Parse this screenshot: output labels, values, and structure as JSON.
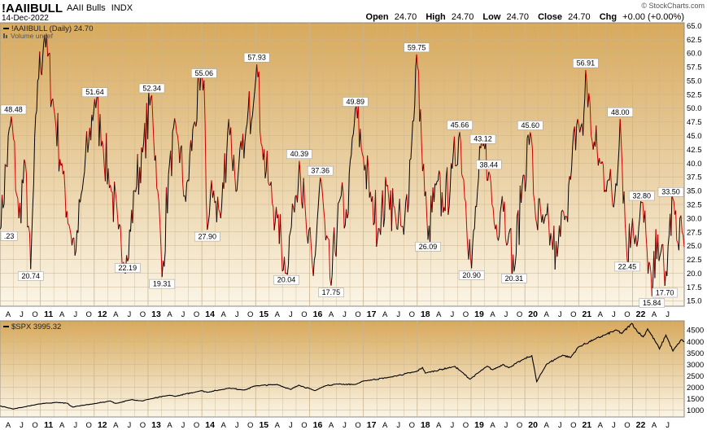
{
  "header": {
    "symbol": "!AAIIBULL",
    "name": "AAII Bulls",
    "exchange": "INDX",
    "date": "14-Dec-2022",
    "open_label": "Open",
    "open": "24.70",
    "high_label": "High",
    "high": "24.70",
    "low_label": "Low",
    "low": "24.70",
    "close_label": "Close",
    "close": "24.70",
    "chg_label": "Chg",
    "chg": "+0.00 (+0.00%)",
    "logo": "© StockCharts.com"
  },
  "colors": {
    "panel_top": "#d7a95c",
    "panel_bottom": "#fbf5e6",
    "up_line": "#000000",
    "down_line": "#cc0000",
    "spx_line": "#000000",
    "grid": "#c9b48f"
  },
  "chart_data": [
    {
      "type": "line",
      "title": "!AAIIBULL (Daily) 24.70",
      "legend_secondary": "Volume undef",
      "ylim": [
        14,
        65.5
      ],
      "yticks": [
        15.0,
        17.5,
        20.0,
        22.5,
        25.0,
        27.5,
        30.0,
        32.5,
        35.0,
        37.5,
        40.0,
        42.5,
        45.0,
        47.5,
        50.0,
        52.5,
        55.0,
        57.5,
        60.0,
        62.5,
        65.0
      ],
      "x_start": 2010.25,
      "x_end": 2022.96,
      "x_axis_labels": [
        {
          "x": 2010.25,
          "label": "A",
          "year": false
        },
        {
          "x": 2010.5,
          "label": "J",
          "year": false
        },
        {
          "x": 2010.75,
          "label": "O",
          "year": false
        },
        {
          "x": 2011.0,
          "label": "11",
          "year": true
        },
        {
          "x": 2011.25,
          "label": "A",
          "year": false
        },
        {
          "x": 2011.5,
          "label": "J",
          "year": false
        },
        {
          "x": 2011.75,
          "label": "O",
          "year": false
        },
        {
          "x": 2012.0,
          "label": "12",
          "year": true
        },
        {
          "x": 2012.25,
          "label": "A",
          "year": false
        },
        {
          "x": 2012.5,
          "label": "J",
          "year": false
        },
        {
          "x": 2012.75,
          "label": "O",
          "year": false
        },
        {
          "x": 2013.0,
          "label": "13",
          "year": true
        },
        {
          "x": 2013.25,
          "label": "A",
          "year": false
        },
        {
          "x": 2013.5,
          "label": "J",
          "year": false
        },
        {
          "x": 2013.75,
          "label": "O",
          "year": false
        },
        {
          "x": 2014.0,
          "label": "14",
          "year": true
        },
        {
          "x": 2014.25,
          "label": "A",
          "year": false
        },
        {
          "x": 2014.5,
          "label": "J",
          "year": false
        },
        {
          "x": 2014.75,
          "label": "O",
          "year": false
        },
        {
          "x": 2015.0,
          "label": "15",
          "year": true
        },
        {
          "x": 2015.25,
          "label": "A",
          "year": false
        },
        {
          "x": 2015.5,
          "label": "J",
          "year": false
        },
        {
          "x": 2015.75,
          "label": "O",
          "year": false
        },
        {
          "x": 2016.0,
          "label": "16",
          "year": true
        },
        {
          "x": 2016.25,
          "label": "A",
          "year": false
        },
        {
          "x": 2016.5,
          "label": "J",
          "year": false
        },
        {
          "x": 2016.75,
          "label": "O",
          "year": false
        },
        {
          "x": 2017.0,
          "label": "17",
          "year": true
        },
        {
          "x": 2017.25,
          "label": "A",
          "year": false
        },
        {
          "x": 2017.5,
          "label": "J",
          "year": false
        },
        {
          "x": 2017.75,
          "label": "O",
          "year": false
        },
        {
          "x": 2018.0,
          "label": "18",
          "year": true
        },
        {
          "x": 2018.25,
          "label": "A",
          "year": false
        },
        {
          "x": 2018.5,
          "label": "J",
          "year": false
        },
        {
          "x": 2018.75,
          "label": "O",
          "year": false
        },
        {
          "x": 2019.0,
          "label": "19",
          "year": true
        },
        {
          "x": 2019.25,
          "label": "A",
          "year": false
        },
        {
          "x": 2019.5,
          "label": "J",
          "year": false
        },
        {
          "x": 2019.75,
          "label": "O",
          "year": false
        },
        {
          "x": 2020.0,
          "label": "20",
          "year": true
        },
        {
          "x": 2020.25,
          "label": "A",
          "year": false
        },
        {
          "x": 2020.5,
          "label": "J",
          "year": false
        },
        {
          "x": 2020.75,
          "label": "O",
          "year": false
        },
        {
          "x": 2021.0,
          "label": "21",
          "year": true
        },
        {
          "x": 2021.25,
          "label": "A",
          "year": false
        },
        {
          "x": 2021.5,
          "label": "J",
          "year": false
        },
        {
          "x": 2021.75,
          "label": "O",
          "year": false
        },
        {
          "x": 2022.0,
          "label": "22",
          "year": true
        },
        {
          "x": 2022.25,
          "label": "A",
          "year": false
        },
        {
          "x": 2022.5,
          "label": "J",
          "year": false
        },
        {
          "x": 2022.75,
          "label": "O",
          "year": false
        }
      ],
      "annotations": [
        {
          "x": 2010.26,
          "y": 28.0,
          "label": ".23",
          "pos": "below"
        },
        {
          "x": 2010.46,
          "y": 48.48,
          "label": "48.48",
          "pos": "above"
        },
        {
          "x": 2010.82,
          "y": 20.74,
          "label": "20.74",
          "pos": "below"
        },
        {
          "x": 2012.01,
          "y": 51.64,
          "label": "51.64",
          "pos": "above"
        },
        {
          "x": 2012.62,
          "y": 22.19,
          "label": "22.19",
          "pos": "below"
        },
        {
          "x": 2013.07,
          "y": 52.34,
          "label": "52.34",
          "pos": "above"
        },
        {
          "x": 2013.26,
          "y": 19.31,
          "label": "19.31",
          "pos": "below"
        },
        {
          "x": 2014.04,
          "y": 55.06,
          "label": "55.06",
          "pos": "above"
        },
        {
          "x": 2014.1,
          "y": 27.9,
          "label": "27.90",
          "pos": "below"
        },
        {
          "x": 2015.02,
          "y": 57.93,
          "label": "57.93",
          "pos": "above"
        },
        {
          "x": 2015.57,
          "y": 20.04,
          "label": "20.04",
          "pos": "below"
        },
        {
          "x": 2015.81,
          "y": 40.39,
          "label": "40.39",
          "pos": "above"
        },
        {
          "x": 2016.2,
          "y": 37.36,
          "label": "37.36",
          "pos": "above"
        },
        {
          "x": 2016.4,
          "y": 17.75,
          "label": "17.75",
          "pos": "below"
        },
        {
          "x": 2016.85,
          "y": 49.89,
          "label": "49.89",
          "pos": "above"
        },
        {
          "x": 2017.99,
          "y": 59.75,
          "label": "59.75",
          "pos": "above"
        },
        {
          "x": 2018.2,
          "y": 26.09,
          "label": "26.09",
          "pos": "below"
        },
        {
          "x": 2018.79,
          "y": 45.66,
          "label": "45.66",
          "pos": "above"
        },
        {
          "x": 2019.01,
          "y": 20.9,
          "label": "20.90",
          "pos": "below"
        },
        {
          "x": 2019.22,
          "y": 43.12,
          "label": "43.12",
          "pos": "above"
        },
        {
          "x": 2019.33,
          "y": 38.44,
          "label": "38.44",
          "pos": "above"
        },
        {
          "x": 2019.8,
          "y": 20.31,
          "label": "20.31",
          "pos": "below"
        },
        {
          "x": 2020.1,
          "y": 45.6,
          "label": "45.60",
          "pos": "above"
        },
        {
          "x": 2021.13,
          "y": 56.91,
          "label": "56.91",
          "pos": "above"
        },
        {
          "x": 2021.77,
          "y": 48.0,
          "label": "48.00",
          "pos": "above"
        },
        {
          "x": 2021.9,
          "y": 22.45,
          "label": "22.45",
          "pos": "below"
        },
        {
          "x": 2022.17,
          "y": 32.8,
          "label": "32.80",
          "pos": "above"
        },
        {
          "x": 2022.36,
          "y": 15.84,
          "label": "15.84",
          "pos": "below"
        },
        {
          "x": 2022.6,
          "y": 17.7,
          "label": "17.70",
          "pos": "below"
        },
        {
          "x": 2022.75,
          "y": 33.5,
          "label": "33.50",
          "pos": "above"
        }
      ],
      "anchors": [
        [
          2010.25,
          28.0
        ],
        [
          2010.46,
          48.48
        ],
        [
          2010.6,
          30.0
        ],
        [
          2010.72,
          40.0
        ],
        [
          2010.82,
          20.74
        ],
        [
          2010.95,
          55.0
        ],
        [
          2011.08,
          63.3
        ],
        [
          2011.25,
          50.0
        ],
        [
          2011.42,
          38.0
        ],
        [
          2011.55,
          28.0
        ],
        [
          2011.66,
          24.0
        ],
        [
          2011.8,
          37.0
        ],
        [
          2011.9,
          44.0
        ],
        [
          2012.01,
          51.64
        ],
        [
          2012.15,
          44.0
        ],
        [
          2012.3,
          36.0
        ],
        [
          2012.45,
          28.0
        ],
        [
          2012.62,
          22.19
        ],
        [
          2012.75,
          35.0
        ],
        [
          2012.9,
          42.0
        ],
        [
          2013.07,
          52.34
        ],
        [
          2013.18,
          35.0
        ],
        [
          2013.26,
          19.31
        ],
        [
          2013.4,
          40.0
        ],
        [
          2013.55,
          45.0
        ],
        [
          2013.7,
          33.0
        ],
        [
          2013.85,
          47.0
        ],
        [
          2014.04,
          55.06
        ],
        [
          2014.1,
          27.9
        ],
        [
          2014.22,
          35.0
        ],
        [
          2014.35,
          30.0
        ],
        [
          2014.5,
          48.0
        ],
        [
          2014.65,
          35.0
        ],
        [
          2014.8,
          44.0
        ],
        [
          2015.02,
          57.93
        ],
        [
          2015.12,
          43.0
        ],
        [
          2015.25,
          36.0
        ],
        [
          2015.4,
          30.0
        ],
        [
          2015.57,
          20.04
        ],
        [
          2015.7,
          32.0
        ],
        [
          2015.81,
          40.39
        ],
        [
          2015.95,
          27.0
        ],
        [
          2016.07,
          19.5
        ],
        [
          2016.2,
          37.36
        ],
        [
          2016.3,
          26.0
        ],
        [
          2016.4,
          17.75
        ],
        [
          2016.55,
          33.0
        ],
        [
          2016.7,
          30.0
        ],
        [
          2016.85,
          49.89
        ],
        [
          2017.0,
          41.0
        ],
        [
          2017.15,
          33.0
        ],
        [
          2017.3,
          28.0
        ],
        [
          2017.45,
          36.0
        ],
        [
          2017.6,
          30.0
        ],
        [
          2017.75,
          27.0
        ],
        [
          2017.9,
          44.0
        ],
        [
          2017.99,
          59.75
        ],
        [
          2018.08,
          44.0
        ],
        [
          2018.2,
          26.09
        ],
        [
          2018.35,
          36.0
        ],
        [
          2018.5,
          32.0
        ],
        [
          2018.65,
          39.0
        ],
        [
          2018.79,
          45.66
        ],
        [
          2018.9,
          33.0
        ],
        [
          2019.01,
          20.9
        ],
        [
          2019.12,
          35.0
        ],
        [
          2019.22,
          43.12
        ],
        [
          2019.33,
          38.44
        ],
        [
          2019.45,
          28.0
        ],
        [
          2019.58,
          34.0
        ],
        [
          2019.7,
          27.0
        ],
        [
          2019.8,
          20.31
        ],
        [
          2019.95,
          36.0
        ],
        [
          2020.1,
          45.6
        ],
        [
          2020.2,
          30.0
        ],
        [
          2020.35,
          29.0
        ],
        [
          2020.5,
          26.0
        ],
        [
          2020.6,
          23.0
        ],
        [
          2020.72,
          31.0
        ],
        [
          2020.85,
          37.0
        ],
        [
          2020.98,
          48.0
        ],
        [
          2021.08,
          45.0
        ],
        [
          2021.13,
          56.91
        ],
        [
          2021.25,
          44.0
        ],
        [
          2021.4,
          40.0
        ],
        [
          2021.55,
          37.0
        ],
        [
          2021.65,
          32.0
        ],
        [
          2021.77,
          48.0
        ],
        [
          2021.9,
          22.45
        ],
        [
          2022.0,
          30.0
        ],
        [
          2022.1,
          26.0
        ],
        [
          2022.17,
          32.8
        ],
        [
          2022.27,
          24.0
        ],
        [
          2022.36,
          15.84
        ],
        [
          2022.47,
          27.0
        ],
        [
          2022.53,
          24.0
        ],
        [
          2022.6,
          17.7
        ],
        [
          2022.68,
          27.0
        ],
        [
          2022.75,
          33.5
        ],
        [
          2022.82,
          26.0
        ],
        [
          2022.88,
          30.0
        ],
        [
          2022.96,
          24.7
        ]
      ]
    },
    {
      "type": "line",
      "title": "$SPX 3995.32",
      "ylim": [
        700,
        4900
      ],
      "yticks": [
        1000,
        1500,
        2000,
        2500,
        3000,
        3500,
        4000,
        4500
      ],
      "x_start": 2010.25,
      "x_end": 2022.96,
      "points": [
        [
          2010.25,
          1180
        ],
        [
          2010.4,
          1100
        ],
        [
          2010.5,
          1050
        ],
        [
          2010.7,
          1140
        ],
        [
          2010.95,
          1260
        ],
        [
          2011.3,
          1340
        ],
        [
          2011.5,
          1300
        ],
        [
          2011.6,
          1130
        ],
        [
          2011.75,
          1200
        ],
        [
          2011.95,
          1260
        ],
        [
          2012.3,
          1400
        ],
        [
          2012.4,
          1290
        ],
        [
          2012.7,
          1460
        ],
        [
          2012.9,
          1400
        ],
        [
          2013.0,
          1470
        ],
        [
          2013.4,
          1650
        ],
        [
          2013.5,
          1600
        ],
        [
          2013.99,
          1850
        ],
        [
          2014.1,
          1780
        ],
        [
          2014.5,
          1960
        ],
        [
          2014.8,
          1880
        ],
        [
          2014.99,
          2060
        ],
        [
          2015.4,
          2120
        ],
        [
          2015.65,
          1900
        ],
        [
          2015.8,
          2090
        ],
        [
          2016.1,
          1850
        ],
        [
          2016.3,
          2070
        ],
        [
          2016.5,
          2140
        ],
        [
          2016.85,
          2120
        ],
        [
          2017.0,
          2270
        ],
        [
          2017.5,
          2440
        ],
        [
          2017.99,
          2690
        ],
        [
          2018.1,
          2860
        ],
        [
          2018.15,
          2620
        ],
        [
          2018.7,
          2910
        ],
        [
          2018.8,
          2720
        ],
        [
          2018.98,
          2350
        ],
        [
          2019.3,
          2920
        ],
        [
          2019.4,
          2760
        ],
        [
          2019.6,
          3000
        ],
        [
          2019.7,
          2850
        ],
        [
          2019.99,
          3240
        ],
        [
          2020.13,
          3380
        ],
        [
          2020.22,
          2240
        ],
        [
          2020.4,
          3000
        ],
        [
          2020.6,
          3270
        ],
        [
          2020.7,
          3400
        ],
        [
          2020.85,
          3300
        ],
        [
          2020.99,
          3750
        ],
        [
          2021.3,
          4100
        ],
        [
          2021.5,
          4300
        ],
        [
          2021.7,
          4500
        ],
        [
          2021.8,
          4350
        ],
        [
          2021.99,
          4790
        ],
        [
          2022.1,
          4400
        ],
        [
          2022.2,
          4200
        ],
        [
          2022.28,
          4550
        ],
        [
          2022.45,
          3900
        ],
        [
          2022.5,
          3670
        ],
        [
          2022.62,
          4280
        ],
        [
          2022.75,
          3580
        ],
        [
          2022.85,
          3900
        ],
        [
          2022.9,
          4070
        ],
        [
          2022.96,
          3995
        ]
      ]
    }
  ]
}
